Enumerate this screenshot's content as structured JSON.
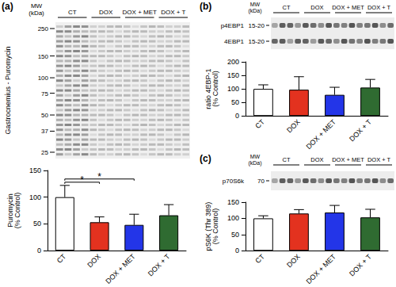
{
  "chart_data": [
    {
      "panel": "(a)",
      "type": "bar",
      "categories": [
        "CT",
        "DOX",
        "DOX + MET",
        "DOX + T"
      ],
      "values": [
        100,
        53,
        48,
        66
      ],
      "errors": [
        22,
        10,
        20,
        20
      ],
      "colors": [
        "#ffffff",
        "#e3321f",
        "#2335e8",
        "#2f6b31"
      ],
      "ylabel": "Puromycin\n(% Control)",
      "ylim": [
        0,
        150
      ],
      "yticks": [
        0,
        50,
        100,
        150
      ],
      "significance": [
        {
          "from": "CT",
          "to": "DOX",
          "label": "*"
        },
        {
          "from": "CT",
          "to": "DOX + MET",
          "label": "*"
        }
      ],
      "blot": {
        "mw_title": "MW\n(kDa)",
        "markers": [
          250,
          150,
          100,
          75,
          50,
          37,
          25
        ],
        "label": "Gastrocnemius - Puromycin",
        "groups": [
          "CT",
          "DOX",
          "DOX + MET",
          "DOX + T"
        ]
      }
    },
    {
      "panel": "(b)",
      "type": "bar",
      "categories": [
        "CT",
        "DOX",
        "DOX + MET",
        "DOX + T"
      ],
      "values": [
        100,
        97,
        78,
        105
      ],
      "errors": [
        15,
        48,
        28,
        30
      ],
      "colors": [
        "#ffffff",
        "#e3321f",
        "#2335e8",
        "#2f6b31"
      ],
      "ylabel": "ratio 4EBP-1\n(% Control)",
      "ylim": [
        0,
        200
      ],
      "yticks": [
        0,
        50,
        100,
        150,
        200
      ],
      "blot": {
        "mw_title": "MW\n(kDa)",
        "groups": [
          "CT",
          "DOX",
          "DOX + MET",
          "DOX + T"
        ],
        "rows": [
          {
            "label": "p4EBP1",
            "mw": "15-20"
          },
          {
            "label": "4EBP1",
            "mw": "15-20"
          }
        ]
      }
    },
    {
      "panel": "(c)",
      "type": "bar",
      "categories": [
        "CT",
        "DOX",
        "DOX + MET",
        "DOX + T"
      ],
      "values": [
        100,
        115,
        118,
        103
      ],
      "errors": [
        8,
        12,
        22,
        25
      ],
      "colors": [
        "#ffffff",
        "#e3321f",
        "#2335e8",
        "#2f6b31"
      ],
      "ylabel": "pS6K (Thr 389)\n(% Control)",
      "ylim": [
        0,
        150
      ],
      "yticks": [
        0,
        50,
        100,
        150
      ],
      "blot": {
        "mw_title": "MW\n(kDa)",
        "groups": [
          "CT",
          "DOX",
          "DOX + MET",
          "DOX + T"
        ],
        "rows": [
          {
            "label": "p70S6k",
            "mw": "70"
          }
        ]
      }
    }
  ]
}
